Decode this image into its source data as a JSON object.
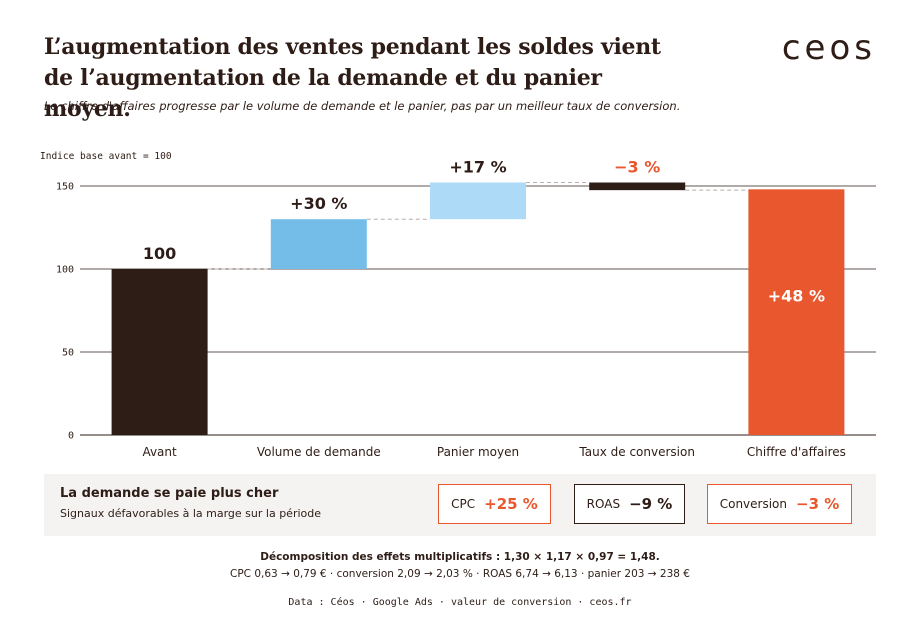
{
  "header": {
    "title": "L’augmentation des ventes pendant les soldes vient de l’augmentation de la demande et du panier moyen.",
    "subtitle": "Le chiffre d'affaires progresse par le volume de demande et le panier, pas par un meilleur taux de conversion.",
    "logo": "ceos"
  },
  "colors": {
    "dark": "#2e1c16",
    "blue_mid": "#74bde8",
    "blue_light": "#acdaf7",
    "orange": "#e8572e",
    "grid": "#2e1c16"
  },
  "chart_data": {
    "type": "waterfall",
    "axis_note": "Indice base avant = 100",
    "ylim": [
      0,
      160
    ],
    "yticks": [
      0,
      50,
      100,
      150
    ],
    "categories": [
      "Avant",
      "Volume de demande",
      "Panier moyen",
      "Taux de conversion",
      "Chiffre d'affaires"
    ],
    "bars": [
      {
        "category": "Avant",
        "start": 0,
        "end": 100,
        "label": "100",
        "color": "dark",
        "label_color": "dark",
        "label_inside": false
      },
      {
        "category": "Volume de demande",
        "start": 100,
        "end": 130,
        "label": "+30 %",
        "color": "blue_mid",
        "label_color": "dark",
        "label_inside": false
      },
      {
        "category": "Panier moyen",
        "start": 130,
        "end": 152.1,
        "label": "+17 %",
        "color": "blue_light",
        "label_color": "dark",
        "label_inside": false
      },
      {
        "category": "Taux de conversion",
        "start": 152.1,
        "end": 147.5,
        "label": "−3 %",
        "color": "dark",
        "label_color": "orange",
        "label_inside": false
      },
      {
        "category": "Chiffre d'affaires",
        "start": 0,
        "end": 148,
        "label": "+48 %",
        "color": "orange",
        "label_color": "white",
        "label_inside": true
      }
    ],
    "grid": true
  },
  "signals": {
    "title": "La demande se paie plus cher",
    "subtitle": "Signaux défavorables à la marge sur la période",
    "kpis": [
      {
        "name": "CPC",
        "value": "+25 %",
        "tone": "bad"
      },
      {
        "name": "ROAS",
        "value": "−9 %",
        "tone": "neutral"
      },
      {
        "name": "Conversion",
        "value": "−3 %",
        "tone": "bad"
      }
    ]
  },
  "footer": {
    "decomposition": "Décomposition des effets multiplicatifs : 1,30 × 1,17 × 0,97 = 1,48.",
    "details": "CPC 0,63 → 0,79 € · conversion 2,09 → 2,03 % · ROAS 6,74 → 6,13 · panier 203 → 238 €",
    "source": "Data : Céos · Google Ads · valeur de conversion · ceos.fr"
  }
}
